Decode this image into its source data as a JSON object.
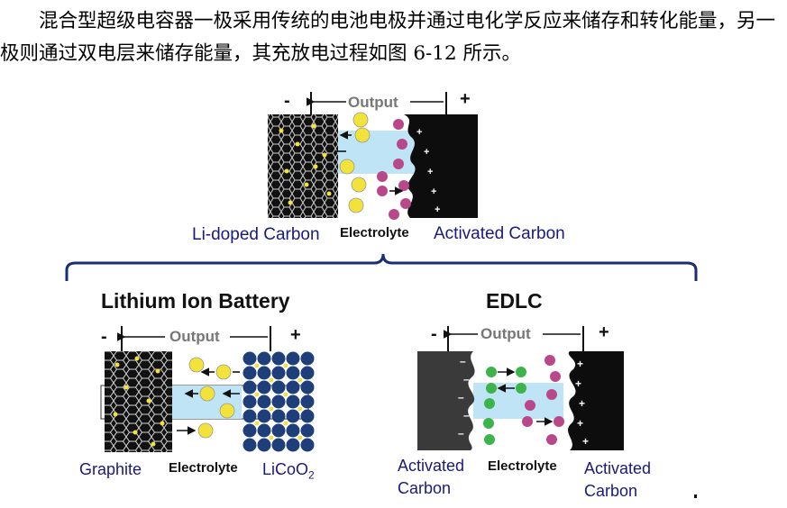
{
  "paragraph": "混合型超级电容器一极采用传统的电池电极并通过电化学反应来储存和转化能量，另一极则通过双电层来储存能量，其充放电过程如图 6-12 所示。",
  "top_diagram": {
    "output_label": "Output",
    "minus": "-",
    "plus": "+",
    "left_label": "Li-doped Carbon",
    "middle_label": "Electrolyte",
    "right_label": "Activated Carbon",
    "li_ion": "Li+"
  },
  "battery": {
    "title": "Lithium Ion Battery",
    "output_label": "Output",
    "minus": "-",
    "plus": "+",
    "left_label": "Graphite",
    "middle_label": "Electrolyte",
    "right_label_main": "LiCoO",
    "right_label_sub": "2"
  },
  "edlc": {
    "title": "EDLC",
    "output_label": "Output",
    "minus": "-",
    "plus": "+",
    "left_label_1": "Activated",
    "left_label_2": "Carbon",
    "middle_label": "Electrolyte",
    "right_label_1": "Activated",
    "right_label_2": "Carbon"
  },
  "colors": {
    "label_text": "#1a1a7a",
    "electrolyte": "#bfe4f5",
    "li_ion": "#f2e23a",
    "anion": "#b8488a",
    "cation": "#3cb44b",
    "licoo2_ball": "#1f3f7a"
  }
}
